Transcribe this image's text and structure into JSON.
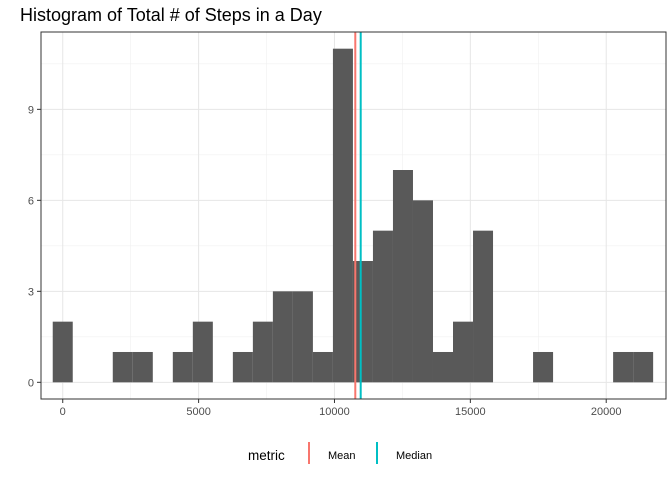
{
  "chart_data": {
    "type": "histogram",
    "title": "Histogram of Total # of Steps in a Day",
    "xlabel": "",
    "ylabel": "",
    "xlim": [
      -800,
      22200
    ],
    "ylim": [
      -0.55,
      11.55
    ],
    "bin_width": 736.5,
    "bars": [
      {
        "x": 0,
        "count": 2
      },
      {
        "x": 736.5,
        "count": 0
      },
      {
        "x": 1473,
        "count": 0
      },
      {
        "x": 2209.5,
        "count": 1
      },
      {
        "x": 2946,
        "count": 1
      },
      {
        "x": 3682.5,
        "count": 0
      },
      {
        "x": 4419,
        "count": 1
      },
      {
        "x": 5155.5,
        "count": 2
      },
      {
        "x": 5892,
        "count": 0
      },
      {
        "x": 6628.5,
        "count": 1
      },
      {
        "x": 7365,
        "count": 2
      },
      {
        "x": 8101.5,
        "count": 3
      },
      {
        "x": 8838,
        "count": 3
      },
      {
        "x": 9574.5,
        "count": 1
      },
      {
        "x": 10311,
        "count": 11
      },
      {
        "x": 11047.5,
        "count": 4
      },
      {
        "x": 11784,
        "count": 5
      },
      {
        "x": 12520.5,
        "count": 7
      },
      {
        "x": 13257,
        "count": 6
      },
      {
        "x": 13993.5,
        "count": 1
      },
      {
        "x": 14730,
        "count": 2
      },
      {
        "x": 15466.5,
        "count": 5
      },
      {
        "x": 16203,
        "count": 0
      },
      {
        "x": 16939.5,
        "count": 0
      },
      {
        "x": 17676,
        "count": 1
      },
      {
        "x": 18412.5,
        "count": 0
      },
      {
        "x": 19149,
        "count": 0
      },
      {
        "x": 19885.5,
        "count": 0
      },
      {
        "x": 20622,
        "count": 1
      },
      {
        "x": 21358.5,
        "count": 1
      }
    ],
    "bar_color": "#595959",
    "x_ticks": [
      {
        "value": 0,
        "label": "0"
      },
      {
        "value": 5000,
        "label": "5000"
      },
      {
        "value": 10000,
        "label": "10000"
      },
      {
        "value": 15000,
        "label": "15000"
      },
      {
        "value": 20000,
        "label": "20000"
      }
    ],
    "y_ticks": [
      {
        "value": 0,
        "label": "0"
      },
      {
        "value": 3,
        "label": "3"
      },
      {
        "value": 6,
        "label": "6"
      },
      {
        "value": 9,
        "label": "9"
      }
    ],
    "grid": true,
    "vlines": [
      {
        "name": "Mean",
        "value": 10766,
        "color": "#F8766D"
      },
      {
        "name": "Median",
        "value": 10965,
        "color": "#00BFC4"
      }
    ],
    "legend": {
      "title": "metric",
      "position": "bottom",
      "entries": [
        {
          "label": "Mean",
          "color": "#F8766D"
        },
        {
          "label": "Median",
          "color": "#00BFC4"
        }
      ]
    }
  }
}
